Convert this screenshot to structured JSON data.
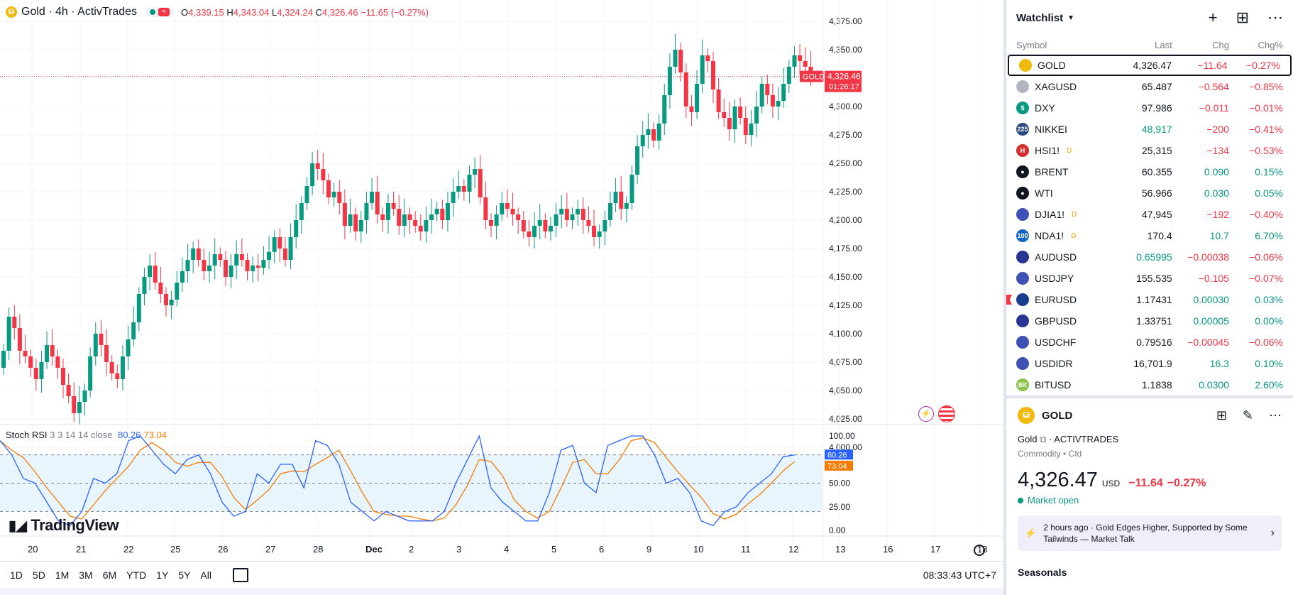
{
  "legend": {
    "title": "Gold · 4h · ActivTrades",
    "o_label": "O",
    "o": "4,339.15",
    "h_label": "H",
    "h": "4,343.04",
    "l_label": "L",
    "l": "4,324.24",
    "c_label": "C",
    "c": "4,326.46",
    "change": "−11.65 (−0.27%)"
  },
  "price_tag": {
    "symbol": "GOLD",
    "price": "4,326.46",
    "countdown": "01:26:17"
  },
  "y_axis": [
    "4,375.00",
    "4,350.00",
    "4,325.00",
    "4,300.00",
    "4,275.00",
    "4,250.00",
    "4,225.00",
    "4,200.00",
    "4,175.00",
    "4,150.00",
    "4,125.00",
    "4,100.00",
    "4,075.00",
    "4,050.00",
    "4,025.00",
    "4,000.00"
  ],
  "rsi": {
    "name": "Stoch RSI",
    "params": "3 3 14 14 close",
    "k": "80.26",
    "d": "73.04",
    "axis": [
      "100.00",
      "50.00",
      "25.00",
      "0.00"
    ]
  },
  "x_axis": [
    "20",
    "21",
    "22",
    "25",
    "26",
    "27",
    "28",
    "Dec",
    "2",
    "3",
    "4",
    "5",
    "6",
    "9",
    "10",
    "11",
    "12",
    "13",
    "16",
    "17",
    "18"
  ],
  "logo": "TradingView",
  "bottom": {
    "ranges": [
      "1D",
      "5D",
      "1M",
      "3M",
      "6M",
      "YTD",
      "1Y",
      "5Y",
      "All"
    ],
    "clock": "08:33:43 UTC+7"
  },
  "colors": {
    "up": "#089981",
    "down": "#f23645",
    "k_line": "#2962ff",
    "d_line": "#f57c00"
  },
  "watchlist": {
    "title": "Watchlist",
    "columns": {
      "symbol": "Symbol",
      "last": "Last",
      "chg": "Chg",
      "pct": "Chg%"
    },
    "rows": [
      {
        "sym": "GOLD",
        "icon": "gold-icon",
        "icolor": "#f0b90b",
        "itext": "",
        "last": "4,326.47",
        "chg": "−11.64",
        "pct": "−0.27%",
        "lastc": "neu",
        "dir": "neg",
        "d": ""
      },
      {
        "sym": "XAGUSD",
        "icon": "silver-icon",
        "icolor": "#b2b5be",
        "itext": "",
        "last": "65.487",
        "chg": "−0.564",
        "pct": "−0.85%",
        "lastc": "neu",
        "dir": "neg",
        "d": ""
      },
      {
        "sym": "DXY",
        "icon": "dollar-icon",
        "icolor": "#089981",
        "itext": "$",
        "last": "97.986",
        "chg": "−0.011",
        "pct": "−0.01%",
        "lastc": "neu",
        "dir": "neg",
        "d": ""
      },
      {
        "sym": "NIKKEI",
        "icon": "nikkei-icon",
        "icolor": "#2a4a7f",
        "itext": "225",
        "last": "48,917",
        "chg": "−200",
        "pct": "−0.41%",
        "lastc": "pos",
        "dir": "neg",
        "d": ""
      },
      {
        "sym": "HSI1!",
        "icon": "hsi-icon",
        "icolor": "#d32f2f",
        "itext": "H",
        "last": "25,315",
        "chg": "−134",
        "pct": "−0.53%",
        "lastc": "neu",
        "dir": "neg",
        "d": "D"
      },
      {
        "sym": "BRENT",
        "icon": "oil-drop-icon",
        "icolor": "#131722",
        "itext": "●",
        "last": "60.355",
        "chg": "0.090",
        "pct": "0.15%",
        "lastc": "neu",
        "dir": "pos",
        "d": ""
      },
      {
        "sym": "WTI",
        "icon": "oil-drop-icon",
        "icolor": "#131722",
        "itext": "●",
        "last": "56.966",
        "chg": "0.030",
        "pct": "0.05%",
        "lastc": "neu",
        "dir": "pos",
        "d": ""
      },
      {
        "sym": "DJIA1!",
        "icon": "us-flag-icon",
        "icolor": "#3f51b5",
        "itext": "",
        "last": "47,945",
        "chg": "−192",
        "pct": "−0.40%",
        "lastc": "neu",
        "dir": "neg",
        "d": "D"
      },
      {
        "sym": "NDA1!",
        "icon": "ndx-icon",
        "icolor": "#1565c0",
        "itext": "100",
        "last": "170.4",
        "chg": "10.7",
        "pct": "6.70%",
        "lastc": "neu",
        "dir": "pos",
        "d": "D"
      },
      {
        "sym": "AUDUSD",
        "icon": "au-flag-icon",
        "icolor": "#283593",
        "itext": "",
        "last": "0.65995",
        "chg": "−0.00038",
        "pct": "−0.06%",
        "lastc": "pos",
        "dir": "neg",
        "d": ""
      },
      {
        "sym": "USDJPY",
        "icon": "us-flag-icon",
        "icolor": "#3f51b5",
        "itext": "",
        "last": "155.535",
        "chg": "−0.105",
        "pct": "−0.07%",
        "lastc": "neu",
        "dir": "neg",
        "d": ""
      },
      {
        "sym": "EURUSD",
        "icon": "eu-flag-icon",
        "icolor": "#1a3c8f",
        "itext": "",
        "last": "1.17431",
        "chg": "0.00030",
        "pct": "0.03%",
        "lastc": "neu",
        "dir": "pos",
        "d": "",
        "flag": true
      },
      {
        "sym": "GBPUSD",
        "icon": "gb-flag-icon",
        "icolor": "#283593",
        "itext": "",
        "last": "1.33751",
        "chg": "0.00005",
        "pct": "0.00%",
        "lastc": "neu",
        "dir": "pos",
        "d": ""
      },
      {
        "sym": "USDCHF",
        "icon": "us-flag-icon",
        "icolor": "#3f51b5",
        "itext": "",
        "last": "0.79516",
        "chg": "−0.00045",
        "pct": "−0.06%",
        "lastc": "neu",
        "dir": "neg",
        "d": ""
      },
      {
        "sym": "USDIDR",
        "icon": "us-flag-icon",
        "icolor": "#3f51b5",
        "itext": "",
        "last": "16,701.9",
        "chg": "16.3",
        "pct": "0.10%",
        "lastc": "neu",
        "dir": "pos",
        "d": ""
      },
      {
        "sym": "BITUSD",
        "icon": "bit-icon",
        "icolor": "#8bc34a",
        "itext": "Bit",
        "last": "1.1838",
        "chg": "0.0300",
        "pct": "2.60%",
        "lastc": "neu",
        "dir": "pos",
        "d": ""
      }
    ]
  },
  "detail": {
    "symbol": "GOLD",
    "name": "Gold",
    "exchange": "ACTIVTRADES",
    "sub": "Commodity • Cfd",
    "price": "4,326.47",
    "currency": "USD",
    "change": "−11.64",
    "pct": "−0.27%",
    "status": "Market open",
    "news_time": "2 hours ago",
    "news_text": "Gold Edges Higher, Supported by Some Tailwinds — Market Talk",
    "seasonals": "Seasonals"
  }
}
